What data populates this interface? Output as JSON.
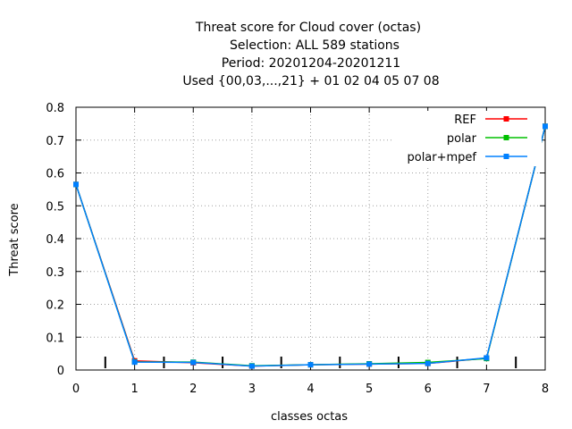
{
  "chart_data": {
    "type": "line",
    "title_lines": [
      "Threat score  for Cloud cover (octas)",
      "Selection: ALL    589 stations",
      "Period: 20201204-20201211",
      "Used {00,03,...,21} + 01 02 04 05 07 08"
    ],
    "xlabel": "classes octas",
    "ylabel": "Threat score",
    "xlim": [
      0,
      8
    ],
    "ylim": [
      0,
      0.8
    ],
    "x_ticks": [
      "0",
      "1",
      "2",
      "3",
      "4",
      "5",
      "6",
      "7",
      "8"
    ],
    "y_ticks": [
      "0",
      "0.1",
      "0.2",
      "0.3",
      "0.4",
      "0.5",
      "0.6",
      "0.7",
      "0.8"
    ],
    "grid": true,
    "legend_position": "top-right",
    "class_boundary_marks": [
      0.5,
      1.5,
      2.5,
      3.5,
      4.5,
      5.5,
      6.5,
      7.5
    ],
    "x": [
      0,
      1,
      2,
      3,
      4,
      5,
      6,
      7,
      8
    ],
    "series": [
      {
        "name": "REF",
        "color": "#ff0000",
        "values": [
          0.565,
          0.028,
          0.022,
          0.012,
          0.016,
          0.018,
          0.02,
          0.036,
          0.742
        ]
      },
      {
        "name": "polar",
        "color": "#00c000",
        "values": [
          0.565,
          0.025,
          0.024,
          0.013,
          0.016,
          0.019,
          0.023,
          0.035,
          0.742
        ]
      },
      {
        "name": "polar+mpef",
        "color": "#0080ff",
        "values": [
          0.565,
          0.024,
          0.023,
          0.012,
          0.016,
          0.018,
          0.02,
          0.037,
          0.742
        ]
      }
    ]
  }
}
